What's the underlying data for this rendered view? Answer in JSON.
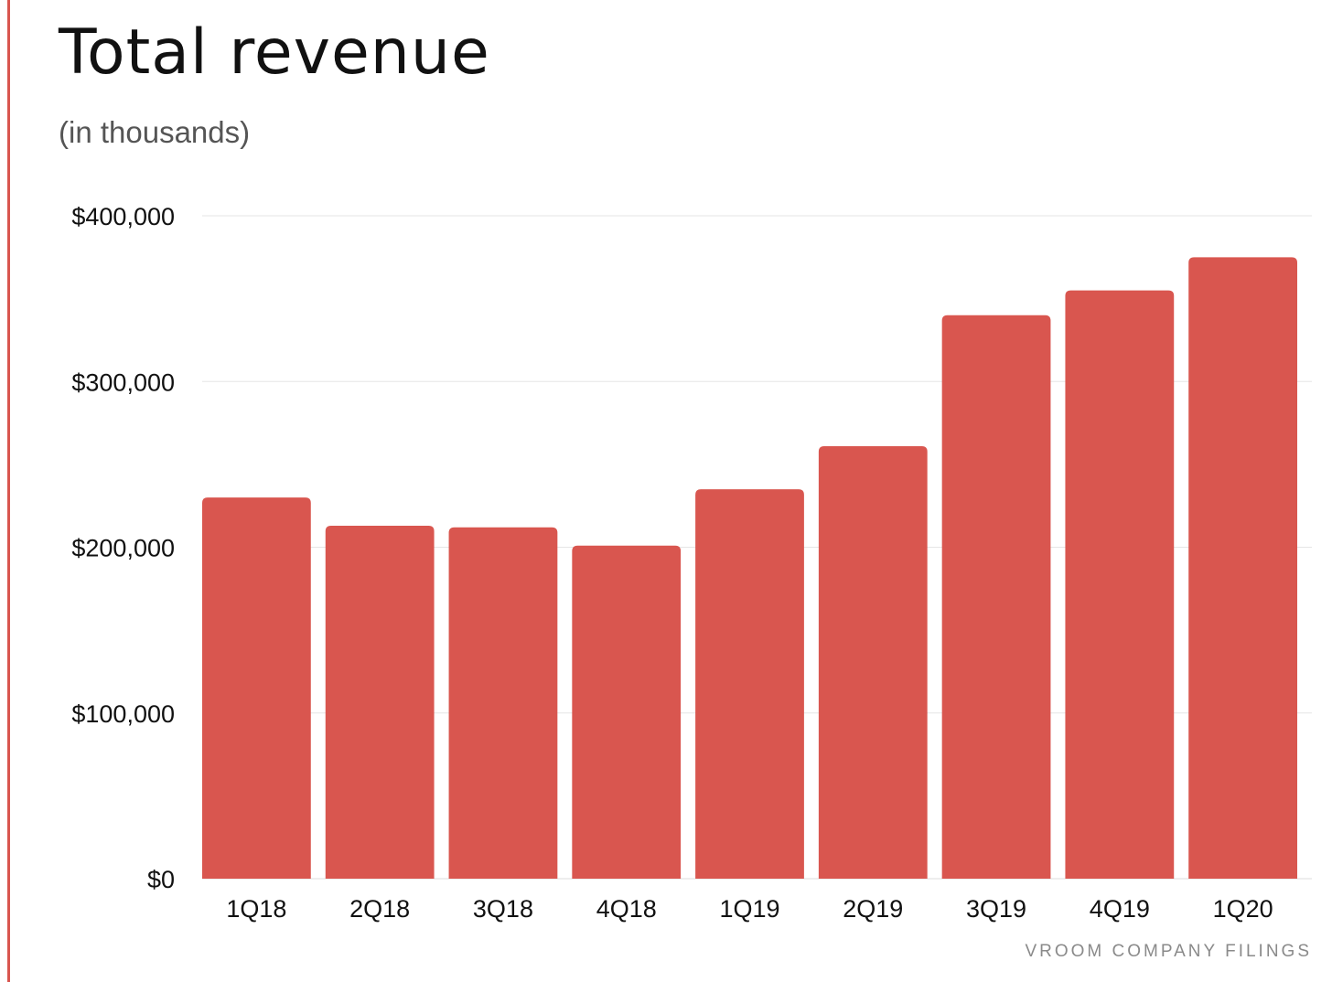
{
  "title": "Total revenue",
  "subtitle": "(in thousands)",
  "source": "VROOM COMPANY FILINGS",
  "colors": {
    "bar": "#d9564f",
    "accent": "#d9564f",
    "grid": "#e6e6e6"
  },
  "chart_data": {
    "type": "bar",
    "title": "Total revenue",
    "subtitle": "(in thousands)",
    "categories": [
      "1Q18",
      "2Q18",
      "3Q18",
      "4Q18",
      "1Q19",
      "2Q19",
      "3Q19",
      "4Q19",
      "1Q20"
    ],
    "values": [
      230000,
      213000,
      212000,
      201000,
      235000,
      261000,
      340000,
      355000,
      375000
    ],
    "ylim": [
      0,
      400000
    ],
    "yticks": [
      0,
      100000,
      200000,
      300000,
      400000
    ],
    "ytick_labels": [
      "$0",
      "$100,000",
      "$200,000",
      "$300,000",
      "$400,000"
    ],
    "grid": true,
    "legend": "none"
  }
}
